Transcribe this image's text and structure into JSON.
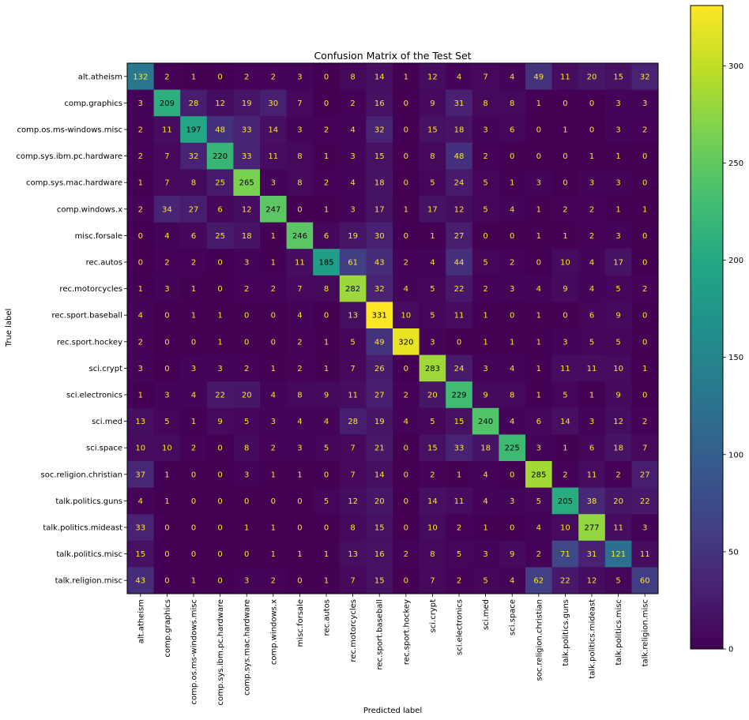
{
  "chart_data": {
    "type": "heatmap",
    "title": "Confusion Matrix of the Test Set",
    "xlabel": "Predicted label",
    "ylabel": "True label",
    "labels": [
      "alt.atheism",
      "comp.graphics",
      "comp.os.ms-windows.misc",
      "comp.sys.ibm.pc.hardware",
      "comp.sys.mac.hardware",
      "comp.windows.x",
      "misc.forsale",
      "rec.autos",
      "rec.motorcycles",
      "rec.sport.baseball",
      "rec.sport.hockey",
      "sci.crypt",
      "sci.electronics",
      "sci.med",
      "sci.space",
      "soc.religion.christian",
      "talk.politics.guns",
      "talk.politics.mideast",
      "talk.politics.misc",
      "talk.religion.misc"
    ],
    "matrix": [
      [
        132,
        2,
        1,
        0,
        2,
        2,
        3,
        0,
        8,
        14,
        1,
        12,
        4,
        7,
        4,
        49,
        11,
        20,
        15,
        32
      ],
      [
        3,
        209,
        28,
        12,
        19,
        30,
        7,
        0,
        2,
        16,
        0,
        9,
        31,
        8,
        8,
        1,
        0,
        0,
        3,
        3
      ],
      [
        2,
        11,
        197,
        48,
        33,
        14,
        3,
        2,
        4,
        32,
        0,
        15,
        18,
        3,
        6,
        0,
        1,
        0,
        3,
        2
      ],
      [
        2,
        7,
        32,
        220,
        33,
        11,
        8,
        1,
        3,
        15,
        0,
        8,
        48,
        2,
        0,
        0,
        0,
        1,
        1,
        0
      ],
      [
        1,
        7,
        8,
        25,
        265,
        3,
        8,
        2,
        4,
        18,
        0,
        5,
        24,
        5,
        1,
        3,
        0,
        3,
        3,
        0
      ],
      [
        2,
        34,
        27,
        6,
        12,
        247,
        0,
        1,
        3,
        17,
        1,
        17,
        12,
        5,
        4,
        1,
        2,
        2,
        1,
        1
      ],
      [
        0,
        4,
        6,
        25,
        18,
        1,
        246,
        6,
        19,
        30,
        0,
        1,
        27,
        0,
        0,
        1,
        1,
        2,
        3,
        0
      ],
      [
        0,
        2,
        2,
        0,
        3,
        1,
        11,
        185,
        61,
        43,
        2,
        4,
        44,
        5,
        2,
        0,
        10,
        4,
        17,
        0
      ],
      [
        1,
        3,
        1,
        0,
        2,
        2,
        7,
        8,
        282,
        32,
        4,
        5,
        22,
        2,
        3,
        4,
        9,
        4,
        5,
        2
      ],
      [
        4,
        0,
        1,
        1,
        0,
        0,
        4,
        0,
        13,
        331,
        10,
        5,
        11,
        1,
        0,
        1,
        0,
        6,
        9,
        0
      ],
      [
        2,
        0,
        0,
        1,
        0,
        0,
        2,
        1,
        5,
        49,
        320,
        3,
        0,
        1,
        1,
        1,
        3,
        5,
        5,
        0
      ],
      [
        3,
        0,
        3,
        3,
        2,
        1,
        2,
        1,
        7,
        26,
        0,
        283,
        24,
        3,
        4,
        1,
        11,
        11,
        10,
        1
      ],
      [
        1,
        3,
        4,
        22,
        20,
        4,
        8,
        9,
        11,
        27,
        2,
        20,
        229,
        9,
        8,
        1,
        5,
        1,
        9,
        0
      ],
      [
        13,
        5,
        1,
        9,
        5,
        3,
        4,
        4,
        28,
        19,
        4,
        5,
        15,
        240,
        4,
        6,
        14,
        3,
        12,
        2
      ],
      [
        10,
        10,
        2,
        0,
        8,
        2,
        3,
        5,
        7,
        21,
        0,
        15,
        33,
        18,
        225,
        3,
        1,
        6,
        18,
        7
      ],
      [
        37,
        1,
        0,
        0,
        3,
        1,
        1,
        0,
        7,
        14,
        0,
        2,
        1,
        4,
        0,
        285,
        2,
        11,
        2,
        27
      ],
      [
        4,
        1,
        0,
        0,
        0,
        0,
        0,
        5,
        12,
        20,
        0,
        14,
        11,
        4,
        3,
        5,
        205,
        38,
        20,
        22
      ],
      [
        33,
        0,
        0,
        0,
        1,
        1,
        0,
        0,
        8,
        15,
        0,
        10,
        2,
        1,
        0,
        4,
        10,
        277,
        11,
        3
      ],
      [
        15,
        0,
        0,
        0,
        0,
        1,
        1,
        1,
        13,
        16,
        2,
        8,
        5,
        3,
        9,
        2,
        71,
        31,
        121,
        11
      ],
      [
        43,
        0,
        1,
        0,
        3,
        2,
        0,
        1,
        7,
        15,
        0,
        7,
        2,
        5,
        4,
        62,
        22,
        12,
        5,
        60
      ]
    ],
    "vmin": 0,
    "vmax": 331,
    "colormap": "viridis",
    "colorbar_ticks": [
      0,
      50,
      100,
      150,
      200,
      250,
      300
    ],
    "colorbar_tick_labels": [
      "0",
      "50",
      "100",
      "150",
      "200",
      "250",
      "300"
    ],
    "text_color_light": "#fde725",
    "text_color_dark": "#000000"
  }
}
